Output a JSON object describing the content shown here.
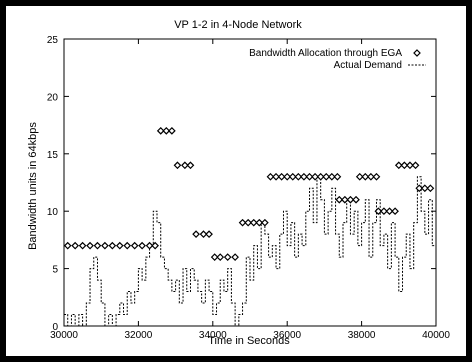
{
  "chart_data": {
    "type": "line",
    "title": "VP 1-2 in 4-Node Network",
    "xlabel": "Time in Seconds",
    "ylabel": "Bandwidth units in 64kbps",
    "xlim": [
      30000,
      40000
    ],
    "ylim": [
      0,
      25
    ],
    "xticks": [
      30000,
      32000,
      34000,
      36000,
      38000,
      40000
    ],
    "yticks": [
      0,
      5,
      10,
      15,
      20,
      25
    ],
    "grid": false,
    "legend_position": "top-right",
    "series": [
      {
        "name": "Bandwidth Allocation through EGA",
        "style": "diamond-markers",
        "points": [
          [
            30100,
            7
          ],
          [
            30300,
            7
          ],
          [
            30500,
            7
          ],
          [
            30700,
            7
          ],
          [
            30900,
            7
          ],
          [
            31100,
            7
          ],
          [
            31300,
            7
          ],
          [
            31500,
            7
          ],
          [
            31700,
            7
          ],
          [
            31900,
            7
          ],
          [
            32100,
            7
          ],
          [
            32300,
            7
          ],
          [
            32450,
            7
          ],
          [
            32600,
            17
          ],
          [
            32750,
            17
          ],
          [
            32900,
            17
          ],
          [
            33050,
            14
          ],
          [
            33250,
            14
          ],
          [
            33400,
            14
          ],
          [
            33550,
            8
          ],
          [
            33750,
            8
          ],
          [
            33900,
            8
          ],
          [
            34050,
            6
          ],
          [
            34200,
            6
          ],
          [
            34400,
            6
          ],
          [
            34600,
            6
          ],
          [
            34800,
            9
          ],
          [
            34950,
            9
          ],
          [
            35100,
            9
          ],
          [
            35250,
            9
          ],
          [
            35400,
            9
          ],
          [
            35550,
            13
          ],
          [
            35700,
            13
          ],
          [
            35850,
            13
          ],
          [
            36000,
            13
          ],
          [
            36150,
            13
          ],
          [
            36300,
            13
          ],
          [
            36450,
            13
          ],
          [
            36600,
            13
          ],
          [
            36750,
            13
          ],
          [
            36900,
            13
          ],
          [
            37050,
            13
          ],
          [
            37200,
            13
          ],
          [
            37350,
            13
          ],
          [
            37400,
            11
          ],
          [
            37550,
            11
          ],
          [
            37700,
            11
          ],
          [
            37850,
            11
          ],
          [
            37950,
            13
          ],
          [
            38100,
            13
          ],
          [
            38250,
            13
          ],
          [
            38400,
            13
          ],
          [
            38450,
            10
          ],
          [
            38600,
            10
          ],
          [
            38750,
            10
          ],
          [
            38900,
            10
          ],
          [
            39000,
            14
          ],
          [
            39150,
            14
          ],
          [
            39300,
            14
          ],
          [
            39450,
            14
          ],
          [
            39550,
            12
          ],
          [
            39700,
            12
          ],
          [
            39850,
            12
          ]
        ]
      },
      {
        "name": "Actual Demand",
        "style": "dashed-line",
        "points": [
          [
            30000,
            1
          ],
          [
            30100,
            0
          ],
          [
            30200,
            1
          ],
          [
            30300,
            0
          ],
          [
            30400,
            1
          ],
          [
            30500,
            0
          ],
          [
            30600,
            2
          ],
          [
            30700,
            5
          ],
          [
            30800,
            6
          ],
          [
            30900,
            4
          ],
          [
            31000,
            2
          ],
          [
            31100,
            0
          ],
          [
            31200,
            1
          ],
          [
            31300,
            0
          ],
          [
            31400,
            1
          ],
          [
            31500,
            2
          ],
          [
            31600,
            1
          ],
          [
            31700,
            3
          ],
          [
            31800,
            2
          ],
          [
            31900,
            3
          ],
          [
            32000,
            5
          ],
          [
            32100,
            4
          ],
          [
            32200,
            6
          ],
          [
            32300,
            7
          ],
          [
            32400,
            10
          ],
          [
            32500,
            9
          ],
          [
            32600,
            6
          ],
          [
            32700,
            5
          ],
          [
            32800,
            4
          ],
          [
            32900,
            3
          ],
          [
            33000,
            4
          ],
          [
            33100,
            2
          ],
          [
            33200,
            5
          ],
          [
            33300,
            3
          ],
          [
            33400,
            5
          ],
          [
            33500,
            4
          ],
          [
            33600,
            3
          ],
          [
            33700,
            2
          ],
          [
            33800,
            4
          ],
          [
            33900,
            3
          ],
          [
            34000,
            1
          ],
          [
            34100,
            2
          ],
          [
            34200,
            4
          ],
          [
            34300,
            3
          ],
          [
            34400,
            5
          ],
          [
            34500,
            2
          ],
          [
            34600,
            0
          ],
          [
            34700,
            1
          ],
          [
            34800,
            2
          ],
          [
            34900,
            6
          ],
          [
            35000,
            4
          ],
          [
            35100,
            7
          ],
          [
            35200,
            5
          ],
          [
            35300,
            9
          ],
          [
            35400,
            8
          ],
          [
            35500,
            6
          ],
          [
            35600,
            7
          ],
          [
            35700,
            5
          ],
          [
            35800,
            8
          ],
          [
            35900,
            10
          ],
          [
            36000,
            7
          ],
          [
            36100,
            9
          ],
          [
            36200,
            6
          ],
          [
            36300,
            8
          ],
          [
            36400,
            7
          ],
          [
            36500,
            10
          ],
          [
            36600,
            12
          ],
          [
            36700,
            9
          ],
          [
            36800,
            13
          ],
          [
            36900,
            11
          ],
          [
            37000,
            8
          ],
          [
            37100,
            10
          ],
          [
            37200,
            12
          ],
          [
            37300,
            8
          ],
          [
            37400,
            6
          ],
          [
            37500,
            9
          ],
          [
            37600,
            11
          ],
          [
            37700,
            8
          ],
          [
            37800,
            10
          ],
          [
            37900,
            7
          ],
          [
            38000,
            9
          ],
          [
            38100,
            11
          ],
          [
            38200,
            6
          ],
          [
            38300,
            9
          ],
          [
            38400,
            11
          ],
          [
            38500,
            7
          ],
          [
            38600,
            8
          ],
          [
            38700,
            5
          ],
          [
            38800,
            9
          ],
          [
            38900,
            6
          ],
          [
            39000,
            3
          ],
          [
            39100,
            6
          ],
          [
            39200,
            8
          ],
          [
            39300,
            5
          ],
          [
            39400,
            9
          ],
          [
            39500,
            13
          ],
          [
            39600,
            10
          ],
          [
            39700,
            8
          ],
          [
            39800,
            11
          ],
          [
            39900,
            7
          ],
          [
            40000,
            6
          ]
        ]
      }
    ]
  }
}
